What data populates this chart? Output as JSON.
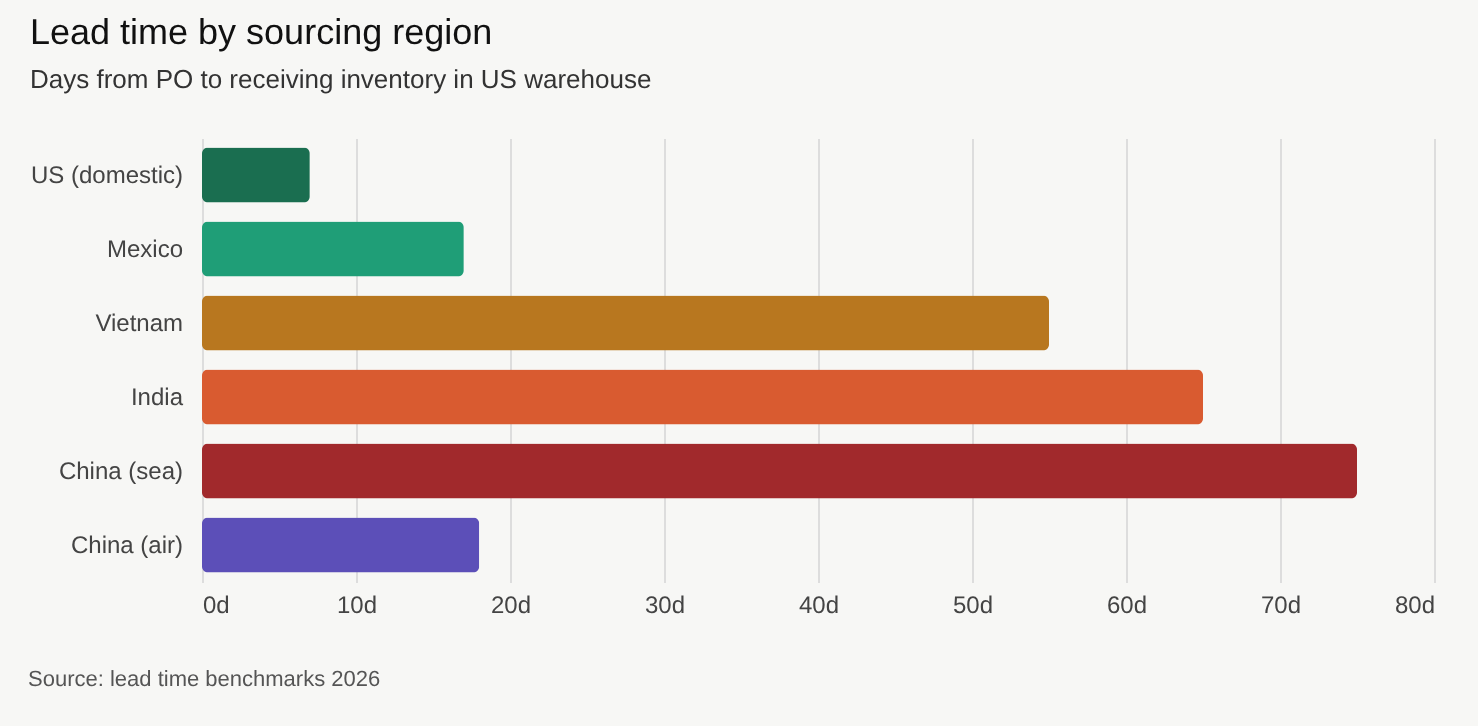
{
  "chart_data": {
    "type": "bar",
    "orientation": "horizontal",
    "title": "Lead time by sourcing region",
    "subtitle": "Days from PO to receiving inventory in US warehouse",
    "categories": [
      "US (domestic)",
      "Mexico",
      "Vietnam",
      "India",
      "China (sea)",
      "China (air)"
    ],
    "values": [
      7,
      17,
      55,
      65,
      75,
      18
    ],
    "colors": [
      "#1a6e50",
      "#1f9e77",
      "#b8771f",
      "#d95b30",
      "#a1292c",
      "#5c4fb8"
    ],
    "xlim": [
      0,
      80
    ],
    "xticks": [
      {
        "value": 0,
        "label": "0d"
      },
      {
        "value": 10,
        "label": "10d"
      },
      {
        "value": 20,
        "label": "20d"
      },
      {
        "value": 30,
        "label": "30d"
      },
      {
        "value": 40,
        "label": "40d"
      },
      {
        "value": 50,
        "label": "50d"
      },
      {
        "value": 60,
        "label": "60d"
      },
      {
        "value": 70,
        "label": "70d"
      },
      {
        "value": 80,
        "label": "80d"
      }
    ],
    "grid": "x",
    "annotations": [
      "Source: lead time benchmarks 2026"
    ]
  }
}
